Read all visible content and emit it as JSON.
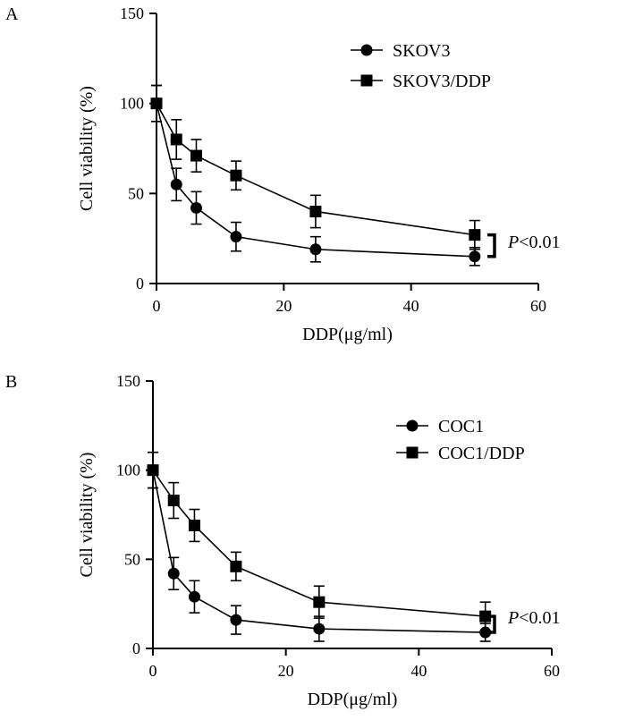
{
  "chart_data": [
    {
      "panel_label": "A",
      "type": "line",
      "xlabel": "DDP(μg/ml)",
      "ylabel": "Cell viability (%)",
      "xlim": [
        0,
        60
      ],
      "ylim": [
        0,
        150
      ],
      "xticks": [
        0,
        20,
        40,
        60
      ],
      "yticks": [
        0,
        50,
        100,
        150
      ],
      "x": [
        0,
        3.125,
        6.25,
        12.5,
        25,
        50
      ],
      "series": [
        {
          "name": "SKOV3",
          "marker": "circle",
          "values": [
            100,
            55,
            42,
            26,
            19,
            15
          ],
          "errors": [
            10,
            9,
            9,
            8,
            7,
            5
          ]
        },
        {
          "name": "SKOV3/DDP",
          "marker": "square",
          "values": [
            100,
            80,
            71,
            60,
            40,
            27
          ],
          "errors": [
            10,
            11,
            9,
            8,
            9,
            8
          ]
        }
      ],
      "annotation": {
        "prefix": "P",
        "text": "<0.01"
      },
      "legend_position": "top-right",
      "grid": false
    },
    {
      "panel_label": "B",
      "type": "line",
      "xlabel": "DDP(μg/ml)",
      "ylabel": "Cell viability (%)",
      "xlim": [
        0,
        60
      ],
      "ylim": [
        0,
        150
      ],
      "xticks": [
        0,
        20,
        40,
        60
      ],
      "yticks": [
        0,
        50,
        100,
        150
      ],
      "x": [
        0,
        3.125,
        6.25,
        12.5,
        25,
        50
      ],
      "series": [
        {
          "name": "COC1",
          "marker": "circle",
          "values": [
            100,
            42,
            29,
            16,
            11,
            9
          ],
          "errors": [
            10,
            9,
            9,
            8,
            7,
            5
          ]
        },
        {
          "name": "COC1/DDP",
          "marker": "square",
          "values": [
            100,
            83,
            69,
            46,
            26,
            18
          ],
          "errors": [
            10,
            10,
            9,
            8,
            9,
            8
          ]
        }
      ],
      "annotation": {
        "prefix": "P",
        "text": "<0.01"
      },
      "legend_position": "top-right",
      "grid": false
    }
  ]
}
